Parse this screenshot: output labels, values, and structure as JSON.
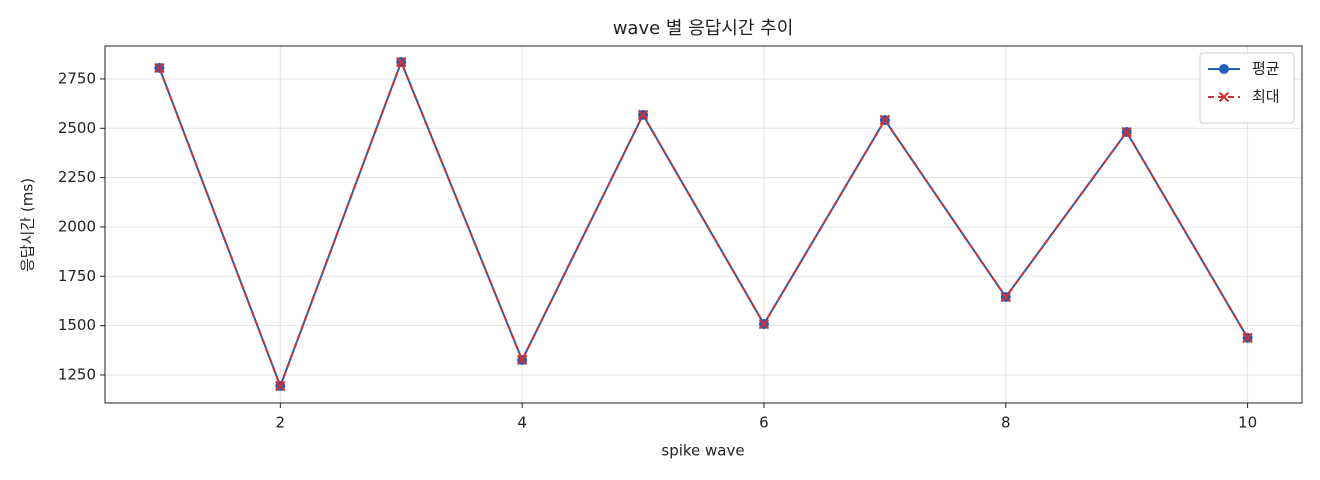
{
  "chart_data": {
    "type": "line",
    "title": "wave 별 응답시간 추이",
    "x_label": "spike wave",
    "y_label": "응답시간 (ms)",
    "x": [
      1,
      2,
      3,
      4,
      5,
      6,
      7,
      8,
      9,
      10
    ],
    "series": [
      {
        "name": "평균",
        "color": "#1f5fbf",
        "marker": "o",
        "linestyle": "solid",
        "values": [
          2806,
          1194,
          2836,
          1326,
          2568,
          1508,
          2542,
          1645,
          2481,
          1438
        ]
      },
      {
        "name": "최대",
        "color": "#d03030",
        "marker": "x",
        "linestyle": "dashed",
        "values": [
          2806,
          1194,
          2836,
          1326,
          2568,
          1508,
          2542,
          1645,
          2481,
          1438
        ]
      }
    ],
    "xlim": [
      0.55,
      10.45
    ],
    "xticks": [
      2,
      4,
      6,
      8,
      10
    ],
    "ylim": [
      1108,
      2917
    ],
    "yticks": [
      1250,
      1500,
      1750,
      2000,
      2250,
      2500,
      2750
    ],
    "grid": true,
    "legend": "upper right"
  }
}
